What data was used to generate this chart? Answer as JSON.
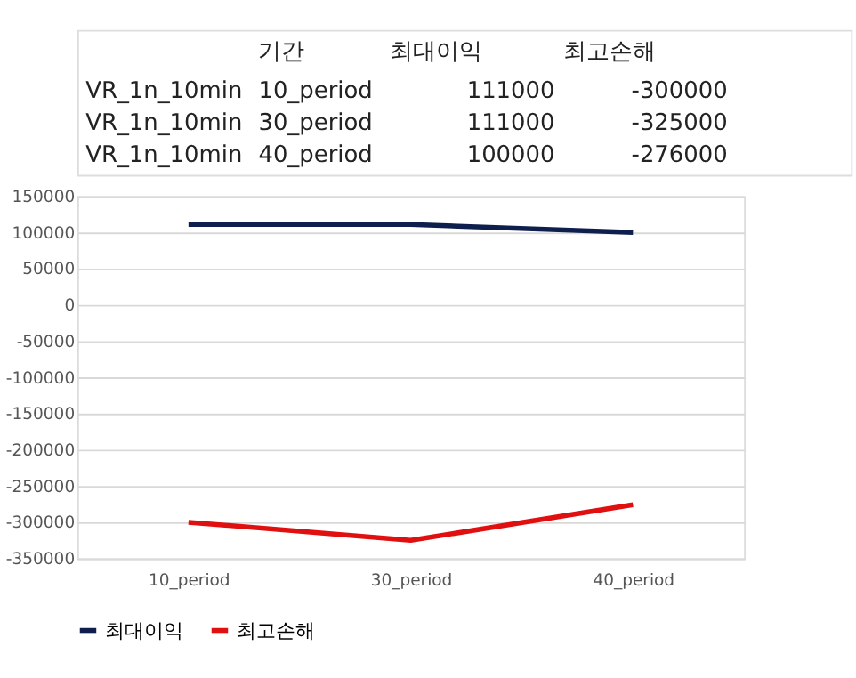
{
  "chart_data": {
    "type": "line",
    "categories": [
      "10_period",
      "30_period",
      "40_period"
    ],
    "series": [
      {
        "name": "최대이익",
        "color": "#0e1f4d",
        "values": [
          111000,
          111000,
          100000
        ]
      },
      {
        "name": "최고손해",
        "color": "#e01010",
        "values": [
          -300000,
          -325000,
          -276000
        ]
      }
    ],
    "ylim": [
      -350000,
      150000
    ],
    "yticks": [
      -350000,
      -300000,
      -250000,
      -200000,
      -150000,
      -100000,
      -50000,
      0,
      50000,
      100000,
      150000
    ],
    "grid": "y",
    "legend": "bottom",
    "marker": "none",
    "line_style": "solid",
    "annotations": [
      "기간",
      "VR_1n_10min",
      "111000",
      "-300000",
      "VR_1n_10min",
      "111000",
      "-325000",
      "VR_1n_10min",
      "100000",
      "-276000"
    ]
  }
}
